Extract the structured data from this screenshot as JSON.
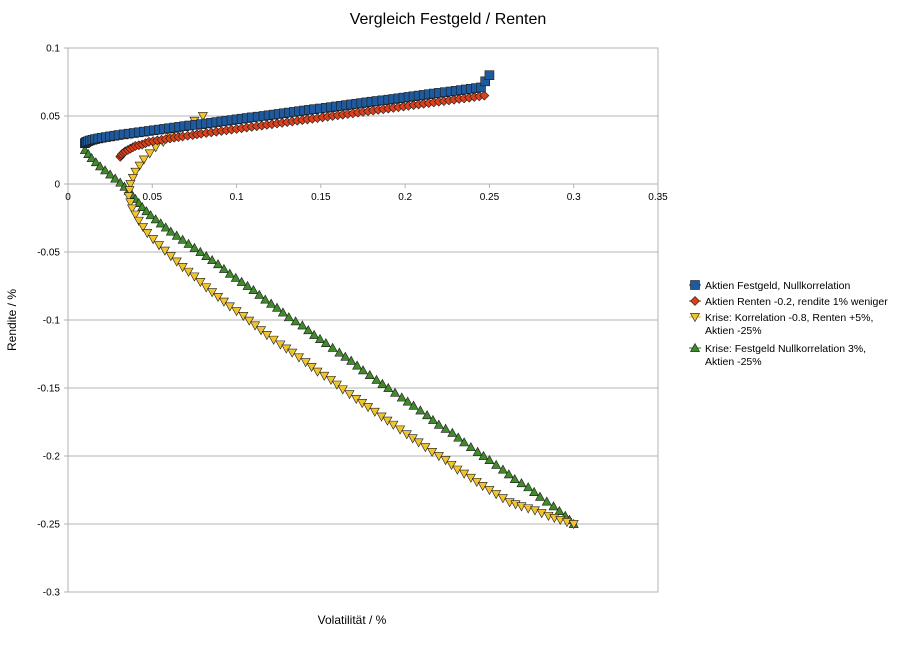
{
  "chart_data": {
    "type": "scatter",
    "title": "Vergleich Festgeld / Renten",
    "xlabel": "Volatilität / %",
    "ylabel": "Rendite / %",
    "xlim": [
      0,
      0.35
    ],
    "ylim": [
      -0.3,
      0.1
    ],
    "x_ticks": [
      "0",
      "0.05",
      "0.1",
      "0.15",
      "0.2",
      "0.25",
      "0.3",
      "0.35"
    ],
    "y_ticks": [
      "0.1",
      "0.05",
      "0",
      "-0.05",
      "-0.1",
      "-0.15",
      "-0.2",
      "-0.25",
      "-0.3"
    ],
    "grid": "horizontal",
    "legend_position": "right",
    "series": [
      {
        "name": "Aktien Festgeld, Nullkorrelation",
        "color": "#1f5a9e",
        "marker": "square",
        "x": [
          0.01,
          0.011,
          0.013,
          0.016,
          0.02,
          0.025,
          0.03,
          0.036,
          0.042,
          0.048,
          0.054,
          0.06,
          0.066,
          0.072,
          0.079,
          0.085,
          0.091,
          0.097,
          0.103,
          0.109,
          0.116,
          0.122,
          0.128,
          0.134,
          0.14,
          0.146,
          0.153,
          0.159,
          0.165,
          0.171,
          0.177,
          0.183,
          0.19,
          0.196,
          0.202,
          0.208,
          0.214,
          0.22,
          0.227,
          0.233,
          0.239,
          0.245,
          0.25
        ],
        "y": [
          0.03,
          0.031,
          0.032,
          0.033,
          0.034,
          0.035,
          0.036,
          0.037,
          0.038,
          0.039,
          0.04,
          0.041,
          0.042,
          0.043,
          0.044,
          0.045,
          0.046,
          0.047,
          0.048,
          0.049,
          0.05,
          0.051,
          0.052,
          0.053,
          0.054,
          0.055,
          0.056,
          0.057,
          0.058,
          0.059,
          0.06,
          0.061,
          0.062,
          0.063,
          0.064,
          0.065,
          0.066,
          0.067,
          0.068,
          0.069,
          0.07,
          0.071,
          0.08
        ]
      },
      {
        "name": "Aktien Renten -0.2, rendite 1% weniger",
        "color": "#d9401c",
        "marker": "diamond",
        "x": [
          0.031,
          0.032,
          0.034,
          0.037,
          0.04,
          0.044,
          0.048,
          0.053,
          0.058,
          0.063,
          0.068,
          0.074,
          0.079,
          0.085,
          0.091,
          0.097,
          0.103,
          0.109,
          0.115,
          0.121,
          0.127,
          0.133,
          0.139,
          0.145,
          0.151,
          0.157,
          0.163,
          0.169,
          0.175,
          0.181,
          0.187,
          0.193,
          0.199,
          0.205,
          0.211,
          0.217,
          0.223,
          0.229,
          0.235,
          0.241,
          0.247
        ],
        "y": [
          0.02,
          0.022,
          0.024,
          0.026,
          0.028,
          0.029,
          0.031,
          0.032,
          0.033,
          0.034,
          0.035,
          0.036,
          0.037,
          0.038,
          0.039,
          0.04,
          0.041,
          0.042,
          0.043,
          0.044,
          0.045,
          0.046,
          0.047,
          0.048,
          0.049,
          0.05,
          0.051,
          0.052,
          0.053,
          0.054,
          0.055,
          0.056,
          0.057,
          0.058,
          0.059,
          0.06,
          0.061,
          0.062,
          0.063,
          0.064,
          0.065
        ]
      },
      {
        "name": "Krise: Korrelation -0.8, Renten +5%, Aktien -25%",
        "color": "#f2c42c",
        "marker": "triangle-down",
        "x": [
          0.08,
          0.07,
          0.061,
          0.052,
          0.045,
          0.04,
          0.037,
          0.036,
          0.038,
          0.042,
          0.047,
          0.054,
          0.061,
          0.068,
          0.075,
          0.082,
          0.089,
          0.096,
          0.104,
          0.111,
          0.118,
          0.126,
          0.133,
          0.141,
          0.148,
          0.156,
          0.163,
          0.171,
          0.178,
          0.186,
          0.193,
          0.201,
          0.208,
          0.216,
          0.224,
          0.231,
          0.239,
          0.246,
          0.254,
          0.262,
          0.269,
          0.277,
          0.285,
          0.292,
          0.3
        ],
        "y": [
          0.05,
          0.043,
          0.035,
          0.027,
          0.018,
          0.009,
          0.0,
          -0.009,
          -0.018,
          -0.027,
          -0.036,
          -0.045,
          -0.053,
          -0.061,
          -0.068,
          -0.076,
          -0.083,
          -0.09,
          -0.097,
          -0.104,
          -0.111,
          -0.118,
          -0.124,
          -0.131,
          -0.138,
          -0.144,
          -0.151,
          -0.158,
          -0.164,
          -0.171,
          -0.177,
          -0.184,
          -0.19,
          -0.197,
          -0.203,
          -0.21,
          -0.216,
          -0.222,
          -0.228,
          -0.234,
          -0.237,
          -0.24,
          -0.244,
          -0.247,
          -0.25
        ]
      },
      {
        "name": "Krise: Festgeld Nullkorrelation 3%, Aktien -25%",
        "color": "#3f8a2a",
        "marker": "triangle-up",
        "x": [
          0.01,
          0.014,
          0.019,
          0.025,
          0.031,
          0.036,
          0.04,
          0.044,
          0.049,
          0.055,
          0.061,
          0.068,
          0.075,
          0.082,
          0.089,
          0.096,
          0.103,
          0.11,
          0.117,
          0.124,
          0.131,
          0.139,
          0.146,
          0.153,
          0.161,
          0.168,
          0.175,
          0.183,
          0.19,
          0.198,
          0.205,
          0.213,
          0.22,
          0.228,
          0.235,
          0.243,
          0.25,
          0.258,
          0.265,
          0.273,
          0.28,
          0.288,
          0.295,
          0.3
        ],
        "y": [
          0.025,
          0.019,
          0.013,
          0.007,
          0.001,
          -0.005,
          -0.011,
          -0.017,
          -0.023,
          -0.029,
          -0.035,
          -0.041,
          -0.047,
          -0.053,
          -0.059,
          -0.066,
          -0.072,
          -0.078,
          -0.085,
          -0.091,
          -0.098,
          -0.104,
          -0.111,
          -0.117,
          -0.124,
          -0.13,
          -0.137,
          -0.144,
          -0.15,
          -0.157,
          -0.163,
          -0.17,
          -0.177,
          -0.183,
          -0.19,
          -0.197,
          -0.203,
          -0.21,
          -0.217,
          -0.223,
          -0.23,
          -0.237,
          -0.244,
          -0.25
        ]
      }
    ]
  },
  "legend": {
    "items": [
      {
        "lines": [
          "Aktien Festgeld, Nullkorrelation"
        ]
      },
      {
        "lines": [
          "Aktien Renten -0.2, rendite 1% weniger"
        ]
      },
      {
        "lines": [
          "Krise: Korrelation -0.8, Renten +5%,",
          "Aktien -25%"
        ]
      },
      {
        "lines": [
          "Krise: Festgeld Nullkorrelation 3%,",
          "Aktien -25%"
        ]
      }
    ]
  }
}
